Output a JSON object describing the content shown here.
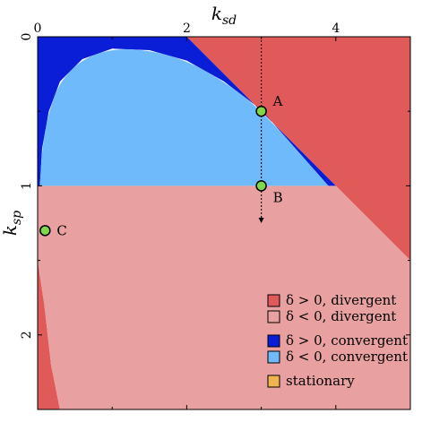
{
  "chart_data": {
    "type": "region-map",
    "x_axis": {
      "label_base": "k",
      "label_sub": "sd",
      "range": [
        0,
        5
      ],
      "ticks": [
        0,
        2,
        4
      ],
      "tick_labels": [
        "0",
        "2",
        "4"
      ],
      "position": "top"
    },
    "y_axis": {
      "label_base": "k",
      "label_sub": "sp",
      "range": [
        0,
        2.5
      ],
      "inverted": true,
      "ticks": [
        0,
        1,
        2
      ],
      "tick_labels": [
        "0",
        "1",
        "2"
      ]
    },
    "regions": [
      {
        "key": "pos_div",
        "legend": "δ > 0,  divergent",
        "color": "#e05a5a",
        "polygons": [
          [
            [
              2.0,
              0
            ],
            [
              5.0,
              0
            ],
            [
              5.0,
              1.5
            ],
            [
              4.0,
              1.0
            ],
            [
              3.0,
              0.5
            ]
          ],
          [
            [
              0.0,
              1.5
            ],
            [
              0.09,
              1.8
            ],
            [
              0.18,
              2.2
            ],
            [
              0.3,
              2.5
            ],
            [
              0.0,
              2.5
            ]
          ]
        ]
      },
      {
        "key": "neg_div",
        "legend": "δ < 0,  divergent",
        "color": "#e8a0a0",
        "polygons": [
          [
            [
              0.0,
              1.0
            ],
            [
              4.0,
              1.0
            ],
            [
              5.0,
              1.5
            ],
            [
              5.0,
              2.5
            ],
            [
              0.3,
              2.5
            ],
            [
              0.18,
              2.2
            ],
            [
              0.09,
              1.8
            ],
            [
              0.0,
              1.5
            ]
          ]
        ]
      },
      {
        "key": "pos_conv",
        "legend": "δ > 0,  convergent",
        "color": "#0a1ed8",
        "polygons": [
          [
            [
              0.04,
              0.0
            ],
            [
              2.0,
              0.0
            ],
            [
              3.0,
              0.5
            ],
            [
              4.0,
              1.0
            ],
            [
              3.9,
              1.0
            ],
            [
              3.0,
              0.49
            ],
            [
              2.5,
              0.3
            ],
            [
              2.0,
              0.16
            ],
            [
              1.5,
              0.09
            ],
            [
              1.0,
              0.08
            ],
            [
              0.6,
              0.15
            ],
            [
              0.3,
              0.3
            ],
            [
              0.15,
              0.5
            ],
            [
              0.06,
              0.75
            ],
            [
              0.03,
              1.0
            ],
            [
              0.0,
              1.0
            ],
            [
              0.0,
              0.0
            ]
          ]
        ]
      },
      {
        "key": "neg_conv",
        "legend": "δ < 0,  convergent",
        "color": "#6ebafa",
        "polygons": [
          [
            [
              0.03,
              1.0
            ],
            [
              0.06,
              0.75
            ],
            [
              0.15,
              0.5
            ],
            [
              0.3,
              0.3
            ],
            [
              0.6,
              0.15
            ],
            [
              1.0,
              0.08
            ],
            [
              1.5,
              0.09
            ],
            [
              2.0,
              0.16
            ],
            [
              2.5,
              0.3
            ],
            [
              3.0,
              0.49
            ],
            [
              3.9,
              1.0
            ]
          ]
        ]
      },
      {
        "key": "stationary",
        "legend": "stationary",
        "color": "#f0b450",
        "polygons": []
      }
    ],
    "points": [
      {
        "label": "A",
        "x": 3.0,
        "y": 0.5
      },
      {
        "label": "B",
        "x": 3.0,
        "y": 1.0
      },
      {
        "label": "C",
        "x": 0.1,
        "y": 1.3
      }
    ],
    "point_color": "#7ed84a",
    "dotted_line": {
      "x": 3.0,
      "y_from": 0.0,
      "y_to": 1.25,
      "arrow": "down"
    },
    "legend_position": "bottom-right",
    "grid": false
  }
}
